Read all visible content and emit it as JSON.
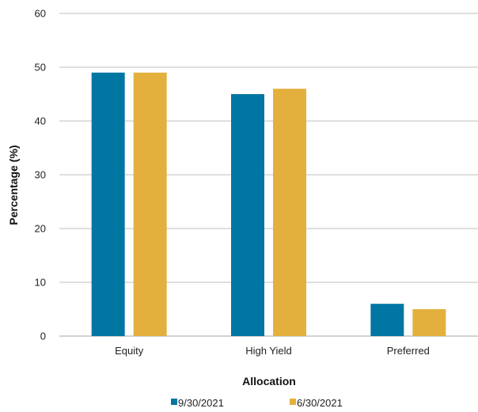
{
  "chart_data": {
    "type": "bar",
    "title": "",
    "xlabel": "Allocation",
    "ylabel": "Percentage (%)",
    "categories": [
      "Equity",
      "High Yield",
      "Preferred"
    ],
    "series": [
      {
        "name": "9/30/2021",
        "values": [
          49,
          45,
          6
        ],
        "color": "#0076A3"
      },
      {
        "name": "6/30/2021",
        "values": [
          49,
          46,
          5
        ],
        "color": "#E3B03D"
      }
    ],
    "ylim": [
      0,
      60
    ],
    "yticks": [
      0,
      10,
      20,
      30,
      40,
      50,
      60
    ],
    "grid": true,
    "gridColor": "#BFBFBF",
    "legend_position": "bottom"
  }
}
